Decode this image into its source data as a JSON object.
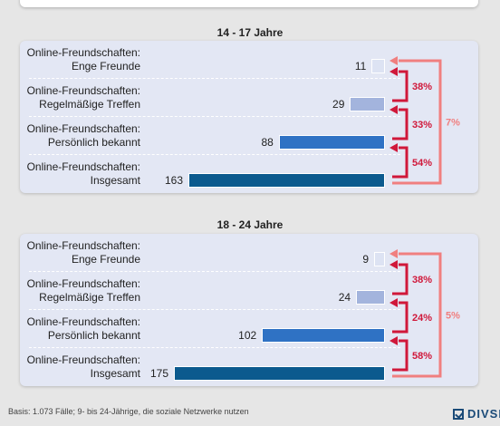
{
  "chart_data": [
    {
      "type": "bar",
      "title": "14 - 17 Jahre",
      "categories": [
        "Online-Freundschaften: Enge Freunde",
        "Online-Freundschaften: Regelmäßige Treffen",
        "Online-Freundschaften: Persönlich bekannt",
        "Online-Freundschaften: Insgesamt"
      ],
      "label_lines": [
        [
          "Online-Freundschaften:",
          "Enge Freunde"
        ],
        [
          "Online-Freundschaften:",
          "Regelmäßige Treffen"
        ],
        [
          "Online-Freundschaften:",
          "Persönlich bekannt"
        ],
        [
          "Online-Freundschaften:",
          "Insgesamt"
        ]
      ],
      "values": [
        11,
        29,
        88,
        163
      ],
      "value_labels": [
        "11",
        "29",
        "88",
        "163"
      ],
      "step_percentages": [
        "38%",
        "33%",
        "54%"
      ],
      "overall_percentage": "7%",
      "colors": [
        "#dde3f3",
        "#a3b4dd",
        "#2f72c4",
        "#0b5a8e"
      ],
      "orientation": "horizontal"
    },
    {
      "type": "bar",
      "title": "18 - 24 Jahre",
      "categories": [
        "Online-Freundschaften: Enge Freunde",
        "Online-Freundschaften: Regelmäßige Treffen",
        "Online-Freundschaften: Persönlich bekannt",
        "Online-Freundschaften: Insgesamt"
      ],
      "label_lines": [
        [
          "Online-Freundschaften:",
          "Enge Freunde"
        ],
        [
          "Online-Freundschaften:",
          "Regelmäßige Treffen"
        ],
        [
          "Online-Freundschaften:",
          "Persönlich bekannt"
        ],
        [
          "Online-Freundschaften:",
          "Insgesamt"
        ]
      ],
      "values": [
        9,
        24,
        102,
        175
      ],
      "value_labels": [
        "9",
        "24",
        "102",
        "175"
      ],
      "step_percentages": [
        "38%",
        "24%",
        "58%"
      ],
      "overall_percentage": "5%",
      "colors": [
        "#dde3f3",
        "#a3b4dd",
        "#2f72c4",
        "#0b5a8e"
      ],
      "orientation": "horizontal"
    }
  ],
  "arrow_colors": {
    "step": "#d0183a",
    "overall": "#f07f7f"
  },
  "footer": "Basis: 1.073 Fälle; 9- bis 24-Jährige, die soziale Netzwerke nutzen",
  "logo": "DIVSI"
}
